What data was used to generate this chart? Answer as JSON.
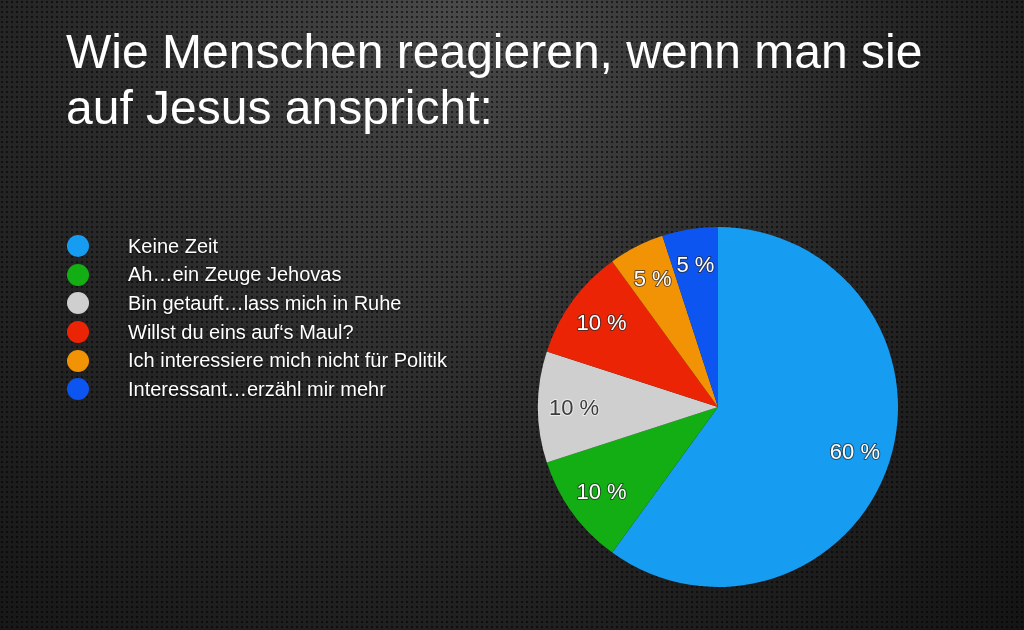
{
  "chart_data": {
    "type": "pie",
    "title": "Wie Menschen reagieren, wenn man sie auf Jesus anspricht:",
    "categories": [
      "Keine Zeit",
      "Ah…ein Zeuge Jehovas",
      "Bin getauft…lass mich in Ruhe",
      "Willst du eins auf‘s Maul?",
      "Ich interessiere mich nicht für Politik",
      "Interessant…erzähl mir mehr"
    ],
    "values": [
      60,
      10,
      10,
      10,
      5,
      5
    ],
    "colors": [
      "#169df2",
      "#12ae14",
      "#cfcfcf",
      "#ec2406",
      "#f29205",
      "#0c55f0"
    ],
    "value_labels": [
      "60 %",
      "10 %",
      "10 %",
      "10 %",
      "5 %",
      "5 %"
    ],
    "legend": "left"
  }
}
